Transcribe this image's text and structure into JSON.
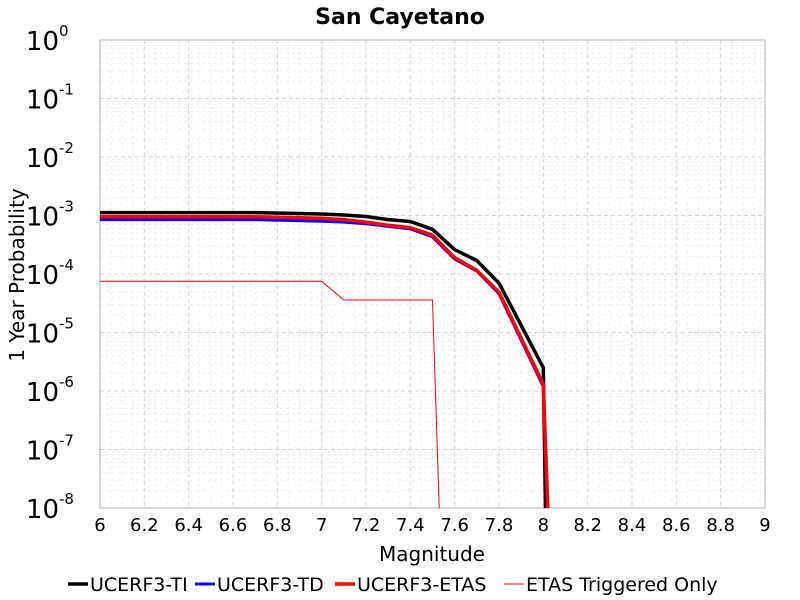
{
  "chart_data": {
    "type": "line",
    "title": "San Cayetano",
    "xlabel": "Magnitude",
    "ylabel": "1 Year Probability",
    "xlim": [
      6,
      9
    ],
    "ylim": [
      1e-08,
      1
    ],
    "yscale": "log",
    "grid": true,
    "legend_position": "bottom",
    "xticks": [
      "6",
      "6.2",
      "6.4",
      "6.6",
      "6.8",
      "7",
      "7.2",
      "7.4",
      "7.6",
      "7.8",
      "8",
      "8.2",
      "8.4",
      "8.6",
      "8.8",
      "9"
    ],
    "yticks": [
      {
        "base": "10",
        "exp": "0",
        "value": 1
      },
      {
        "base": "10",
        "exp": "-1",
        "value": 0.1
      },
      {
        "base": "10",
        "exp": "-2",
        "value": 0.01
      },
      {
        "base": "10",
        "exp": "-3",
        "value": 0.001
      },
      {
        "base": "10",
        "exp": "-4",
        "value": 0.0001
      },
      {
        "base": "10",
        "exp": "-5",
        "value": 1e-05
      },
      {
        "base": "10",
        "exp": "-6",
        "value": 1e-06
      },
      {
        "base": "10",
        "exp": "-7",
        "value": 1e-07
      },
      {
        "base": "10",
        "exp": "-8",
        "value": 1e-08
      }
    ],
    "series": [
      {
        "name": "UCERF3-TI",
        "color": "#000000",
        "x": [
          6.0,
          6.7,
          7.0,
          7.1,
          7.2,
          7.3,
          7.4,
          7.5,
          7.6,
          7.7,
          7.8,
          8.0,
          8.01
        ],
        "y": [
          0.00112,
          0.00112,
          0.00106,
          0.00102,
          0.00096,
          0.00085,
          0.00079,
          0.00058,
          0.00026,
          0.00017,
          7e-05,
          2.5e-06,
          1e-08
        ]
      },
      {
        "name": "UCERF3-TD",
        "color": "#0000ff",
        "x": [
          6.0,
          6.7,
          7.0,
          7.1,
          7.2,
          7.3,
          7.4,
          7.5,
          7.6,
          7.7,
          7.8,
          8.0,
          8.02
        ],
        "y": [
          0.00085,
          0.00085,
          0.0008,
          0.00077,
          0.00072,
          0.00065,
          0.00059,
          0.00043,
          0.00018,
          0.000112,
          4.6e-05,
          1.2e-06,
          1e-08
        ]
      },
      {
        "name": "UCERF3-ETAS",
        "color": "#ff0000",
        "x": [
          6.0,
          6.7,
          7.0,
          7.1,
          7.2,
          7.3,
          7.4,
          7.5,
          7.6,
          7.7,
          7.8,
          8.0,
          8.02
        ],
        "y": [
          0.00095,
          0.00095,
          0.0009,
          0.00085,
          0.00077,
          0.00068,
          0.00062,
          0.00046,
          0.00019,
          0.000115,
          4.9e-05,
          1.3e-06,
          1e-08
        ]
      },
      {
        "name": "ETAS Triggered Only",
        "color": "#ff0000",
        "x": [
          6.0,
          7.0,
          7.1,
          7.5,
          7.53
        ],
        "y": [
          7.5e-05,
          7.5e-05,
          3.6e-05,
          3.6e-05,
          1e-08
        ]
      }
    ]
  }
}
